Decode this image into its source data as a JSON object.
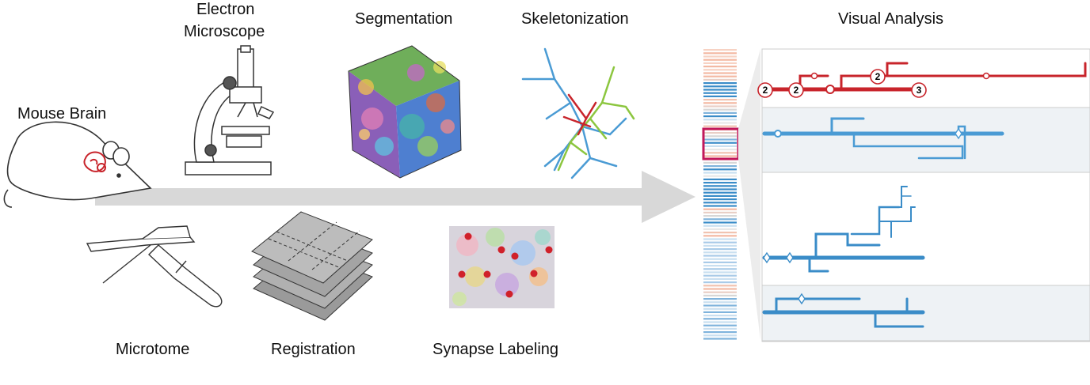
{
  "labels": {
    "mouse_brain": "Mouse Brain",
    "electron_microscope_line1": "Electron",
    "electron_microscope_line2": "Microscope",
    "segmentation": "Segmentation",
    "skeletonization": "Skeletonization",
    "visual_analysis": "Visual Analysis",
    "microtome": "Microtome",
    "registration": "Registration",
    "synapse_labeling": "Synapse Labeling"
  },
  "branch_markers": [
    "2",
    "2",
    "2",
    "3"
  ],
  "colors": {
    "arrow": "#d8d8d8",
    "red_neuron": "#c8242b",
    "blue_neuron": "#3a8cc8",
    "panel_bg": "#eef2f5",
    "highlight": "#c2185b",
    "synapse_dot": "#d0212a"
  }
}
